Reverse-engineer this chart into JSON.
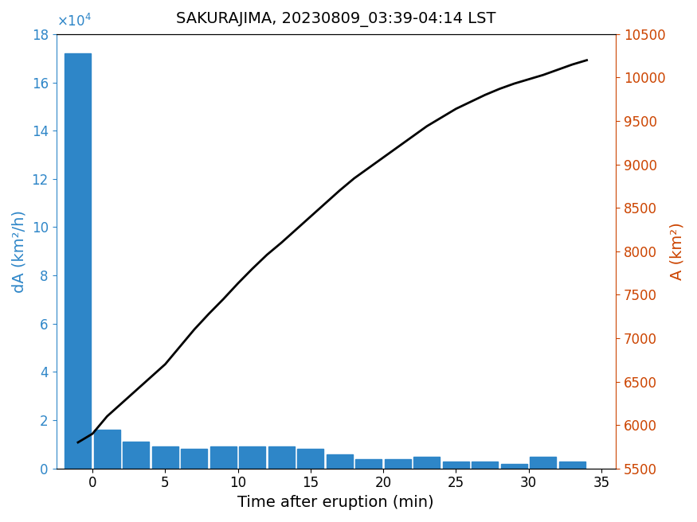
{
  "title": "SAKURAJIMA, 20230809_03:39-04:14 LST",
  "xlabel": "Time after eruption (min)",
  "ylabel_left": "dA (km²/h)",
  "ylabel_right": "A (km²)",
  "bar_color": "#2e86c8",
  "line_color": "#000000",
  "left_axis_color": "#2e86c8",
  "right_axis_color": "#cc4400",
  "bar_times": [
    -1,
    1,
    3,
    5,
    7,
    9,
    11,
    13,
    15,
    17,
    19,
    21,
    23,
    25,
    27,
    29,
    31,
    33
  ],
  "bar_heights": [
    172000,
    16000,
    11000,
    9000,
    8000,
    9000,
    9000,
    9000,
    8000,
    6000,
    4000,
    4000,
    5000,
    3000,
    3000,
    2000,
    5000,
    3000
  ],
  "line_times": [
    -1,
    0,
    1,
    2,
    3,
    4,
    5,
    6,
    7,
    8,
    9,
    10,
    11,
    12,
    13,
    14,
    15,
    16,
    17,
    18,
    19,
    20,
    21,
    22,
    23,
    24,
    25,
    26,
    27,
    28,
    29,
    30,
    31,
    32,
    33,
    34
  ],
  "line_values": [
    5800,
    5900,
    6100,
    6250,
    6400,
    6550,
    6700,
    6900,
    7100,
    7280,
    7450,
    7630,
    7800,
    7960,
    8100,
    8250,
    8400,
    8550,
    8700,
    8840,
    8960,
    9080,
    9200,
    9320,
    9440,
    9540,
    9640,
    9720,
    9800,
    9870,
    9930,
    9980,
    10030,
    10090,
    10150,
    10200
  ],
  "xlim": [
    -2.5,
    36
  ],
  "ylim_left": [
    0,
    180000
  ],
  "ylim_right": [
    5500,
    10500
  ],
  "yticks_left": [
    0,
    20000,
    40000,
    60000,
    80000,
    100000,
    120000,
    140000,
    160000,
    180000
  ],
  "yticks_right": [
    5500,
    6000,
    6500,
    7000,
    7500,
    8000,
    8500,
    9000,
    9500,
    10000,
    10500
  ],
  "xticks": [
    0,
    5,
    10,
    15,
    20,
    25,
    30,
    35
  ],
  "bar_width": 1.8,
  "figsize": [
    8.75,
    6.56
  ],
  "dpi": 100
}
